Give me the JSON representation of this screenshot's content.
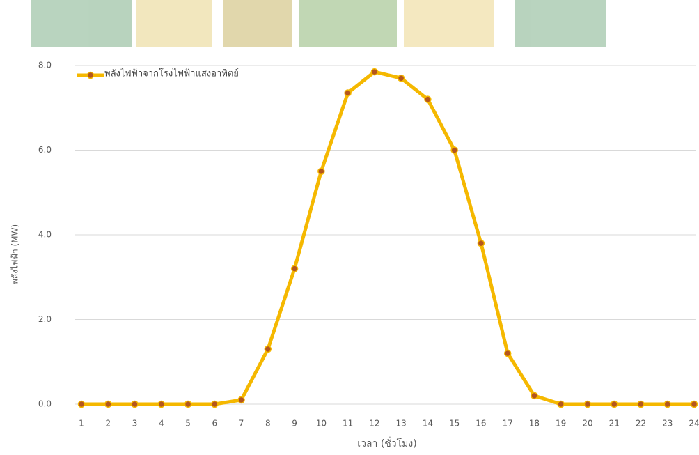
{
  "chart_data": {
    "type": "line",
    "y_label": "พลังไฟฟ้า (MW)",
    "x_label": "เวลา (ชั่วโมง)",
    "categories": [
      "1",
      "2",
      "3",
      "4",
      "5",
      "6",
      "7",
      "8",
      "9",
      "10",
      "11",
      "12",
      "13",
      "14",
      "15",
      "16",
      "17",
      "18",
      "19",
      "20",
      "21",
      "22",
      "23",
      "24"
    ],
    "series": [
      {
        "name": "พลังไฟฟ้าจากโรงไฟฟ้าแสงอาทิตย์",
        "color": "#f5b800",
        "marker_color": "#b5561c",
        "values": [
          0,
          0,
          0,
          0,
          0,
          0,
          0.1,
          1.3,
          3.2,
          5.5,
          7.35,
          7.85,
          7.7,
          7.2,
          6.0,
          3.8,
          1.2,
          0.2,
          0,
          0,
          0,
          0,
          0,
          0
        ]
      }
    ],
    "ylim": [
      0,
      8
    ],
    "yticks": [
      {
        "value": 0,
        "label": "0.0"
      },
      {
        "value": 2,
        "label": "2.0"
      },
      {
        "value": 4,
        "label": "4.0"
      },
      {
        "value": 6,
        "label": "6.0"
      },
      {
        "value": 8,
        "label": "8.0"
      }
    ],
    "grid": true,
    "legend": "top-left"
  }
}
